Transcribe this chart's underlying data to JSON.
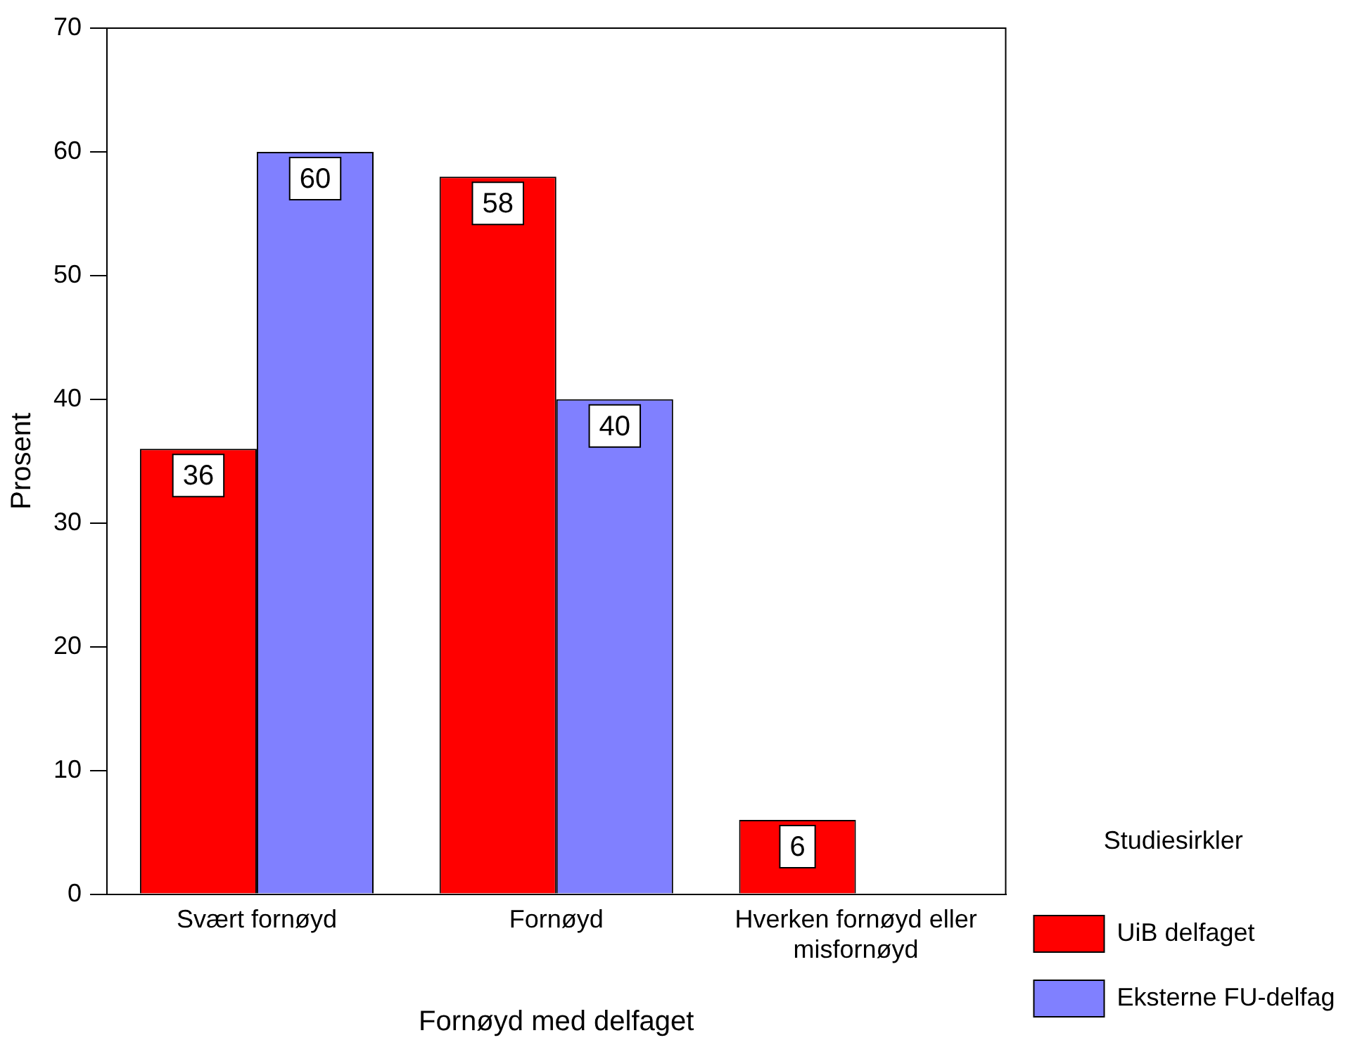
{
  "chart_data": {
    "type": "bar",
    "categories": [
      "Svært fornøyd",
      "Fornøyd",
      "Hverken fornøyd eller misfornøyd"
    ],
    "series": [
      {
        "name": "UiB delfaget",
        "color": "#ff0000",
        "values": [
          36,
          58,
          6
        ]
      },
      {
        "name": "Eksterne FU-delfag",
        "color": "#8080ff",
        "values": [
          60,
          40,
          null
        ]
      }
    ],
    "xlabel": "Fornøyd med delfaget",
    "ylabel": "Prosent",
    "legend_title": "Studiesirkler",
    "legend": "right",
    "ylim": [
      0,
      70
    ],
    "yticks": [
      0,
      10,
      20,
      30,
      40,
      50,
      60,
      70
    ],
    "grid": false,
    "data_labels": true
  }
}
